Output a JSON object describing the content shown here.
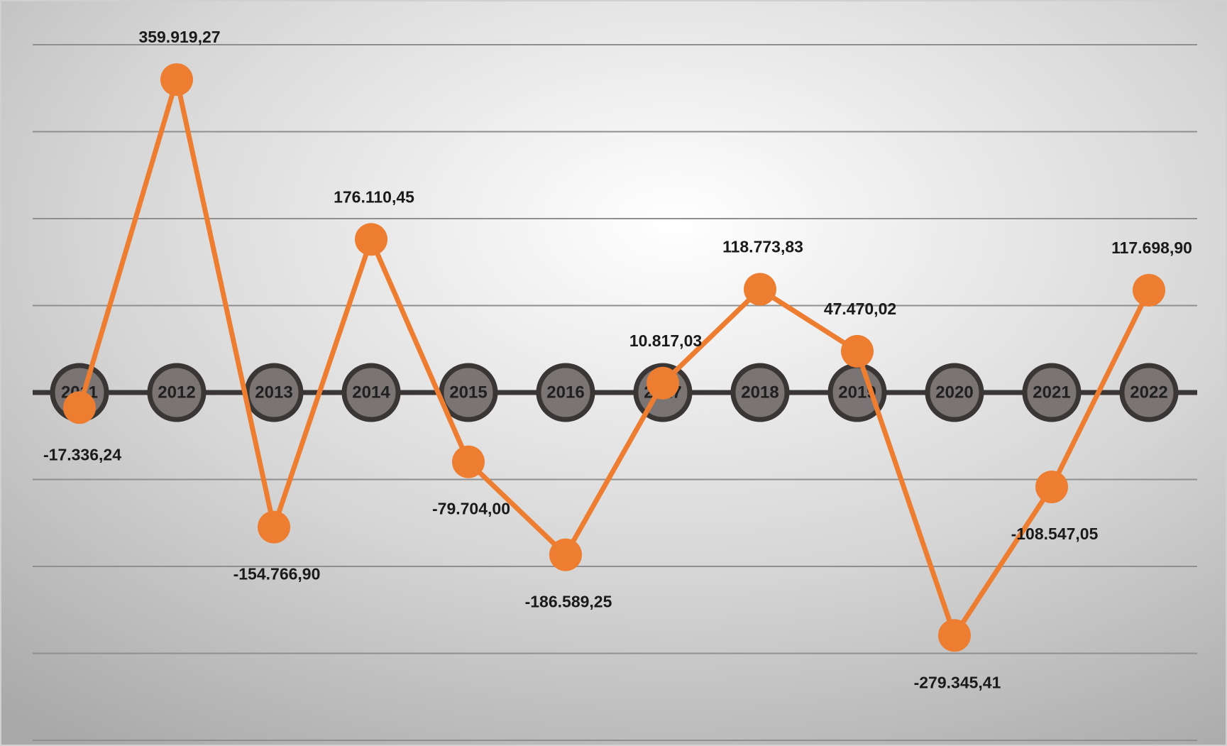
{
  "chart_data": {
    "type": "line",
    "categories": [
      "2011",
      "2012",
      "2013",
      "2014",
      "2015",
      "2016",
      "2017",
      "2018",
      "2019",
      "2020",
      "2021",
      "2022"
    ],
    "series": [
      {
        "color": "#ed7d31",
        "values": [
          -17336.24,
          359919.27,
          -154766.9,
          176110.45,
          -79704.0,
          -186589.25,
          10817.03,
          118773.83,
          47470.02,
          -279345.41,
          -108547.05,
          117698.9
        ],
        "value_labels": [
          "-17.336,24",
          "359.919,27",
          "-154.766,90",
          "176.110,45",
          "-79.704,00",
          "-186.589,25",
          "10.817,03",
          "118.773,83",
          "47.470,02",
          "-279.345,41",
          "-108.547,05",
          "117.698,90"
        ]
      }
    ],
    "ylim": [
      -400000,
      400000
    ],
    "yticks": [
      -400000,
      -300000,
      -200000,
      -100000,
      0,
      100000,
      200000,
      300000,
      400000
    ],
    "grid": true
  }
}
